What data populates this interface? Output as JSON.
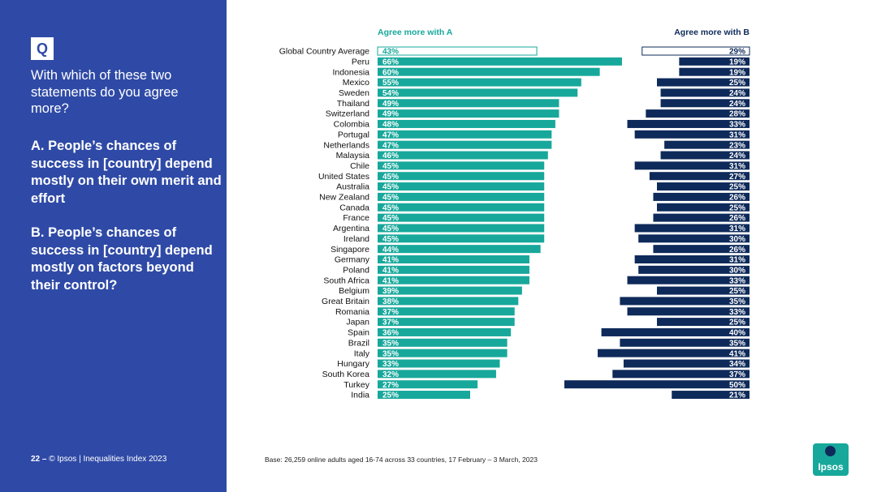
{
  "sidebar": {
    "badge": "Q",
    "question": "With which of these two statements do you agree more?",
    "statement_a": "A. People’s chances of success in [country] depend mostly on their own merit and effort",
    "statement_b": "B. People’s chances of success in [country] depend mostly on factors beyond their control?",
    "page_number": "22 –",
    "copyright": "© Ipsos | Inequalities Index 2023"
  },
  "footer": {
    "base": "Base: 26,259 online adults aged 16-74 across 33 countries, 17 February – 3 March, 2023"
  },
  "logo": {
    "text": "Ipsos"
  },
  "colors": {
    "sidebar": "#2f4aa6",
    "teal": "#17a89b",
    "navy": "#0e2a5a"
  },
  "chart_data": {
    "type": "bar",
    "orientation": "horizontal",
    "categories": [
      "Global Country Average",
      "Peru",
      "Indonesia",
      "Mexico",
      "Sweden",
      "Thailand",
      "Switzerland",
      "Colombia",
      "Portugal",
      "Netherlands",
      "Malaysia",
      "Chile",
      "United States",
      "Australia",
      "New Zealand",
      "Canada",
      "France",
      "Argentina",
      "Ireland",
      "Singapore",
      "Germany",
      "Poland",
      "South Africa",
      "Belgium",
      "Great Britain",
      "Romania",
      "Japan",
      "Spain",
      "Brazil",
      "Italy",
      "Hungary",
      "South Korea",
      "Turkey",
      "India"
    ],
    "series": [
      {
        "name": "Agree more with A",
        "color": "#17a89b",
        "values": [
          43,
          66,
          60,
          55,
          54,
          49,
          49,
          48,
          47,
          47,
          46,
          45,
          45,
          45,
          45,
          45,
          45,
          45,
          45,
          44,
          41,
          41,
          41,
          39,
          38,
          37,
          37,
          36,
          35,
          35,
          33,
          32,
          27,
          25
        ]
      },
      {
        "name": "Agree more with B",
        "color": "#0e2a5a",
        "values": [
          29,
          19,
          19,
          25,
          24,
          24,
          28,
          33,
          31,
          23,
          24,
          31,
          27,
          25,
          26,
          25,
          26,
          31,
          30,
          26,
          31,
          30,
          33,
          25,
          35,
          33,
          25,
          40,
          35,
          41,
          34,
          37,
          50,
          21
        ]
      }
    ],
    "value_suffix": "%",
    "highlight_first": true
  }
}
